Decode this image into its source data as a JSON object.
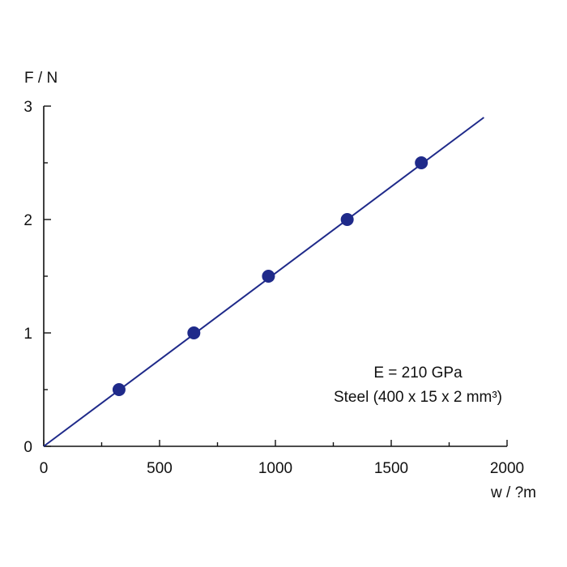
{
  "chart_data": {
    "type": "scatter",
    "title": "",
    "xlabel": "w / ?m",
    "ylabel": "F / N",
    "xlim": [
      0,
      2000
    ],
    "ylim": [
      0,
      3
    ],
    "x_ticks": [
      0,
      500,
      1000,
      1500,
      2000
    ],
    "x_tick_labels": [
      "0",
      "500",
      "1000",
      "1500",
      "2000"
    ],
    "y_ticks": [
      0,
      1,
      2,
      3
    ],
    "y_tick_labels": [
      "0",
      "1",
      "2",
      "3"
    ],
    "grid": false,
    "legend": "none",
    "series": [
      {
        "type": "scatter",
        "x": [
          325,
          648,
          970,
          1310,
          1630
        ],
        "y": [
          0.5,
          1.0,
          1.5,
          2.0,
          2.5
        ]
      },
      {
        "type": "line",
        "x": [
          0,
          1900
        ],
        "y": [
          0,
          2.9
        ]
      }
    ],
    "annotations": [
      "E = 210 GPa",
      "Steel (400 x 15 x 2 mm³)"
    ],
    "colors": {
      "series": "#1f2a8a",
      "axis": "#111111"
    }
  }
}
